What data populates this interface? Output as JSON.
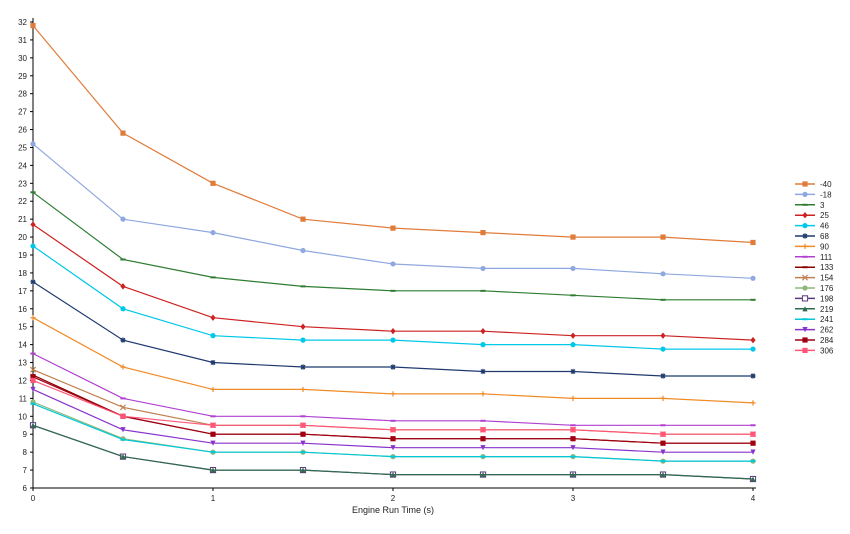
{
  "chart_data": {
    "type": "line",
    "title": "",
    "xlabel": "Engine Run Time (s)",
    "ylabel": "",
    "xlim": [
      0,
      4
    ],
    "ylim": [
      6,
      32
    ],
    "x_ticks": [
      0,
      1,
      2,
      3,
      4
    ],
    "y_ticks": [
      6,
      7,
      8,
      9,
      10,
      11,
      12,
      13,
      14,
      15,
      16,
      17,
      18,
      19,
      20,
      21,
      22,
      23,
      24,
      25,
      26,
      27,
      28,
      29,
      30,
      31,
      32
    ],
    "grid": false,
    "legend_position": "right",
    "x": [
      0,
      0.5,
      1,
      1.5,
      2,
      2.5,
      3,
      3.5,
      4
    ],
    "series": [
      {
        "name": "-40",
        "color": "#e07b39",
        "marker": "square",
        "values": [
          31.8,
          25.8,
          23.0,
          21.0,
          20.5,
          20.25,
          20.0,
          20.0,
          19.7
        ]
      },
      {
        "name": "-18",
        "color": "#8fa8e0",
        "marker": "circle",
        "values": [
          25.2,
          21.0,
          20.25,
          19.25,
          18.5,
          18.25,
          18.25,
          17.95,
          17.7
        ]
      },
      {
        "name": "3",
        "color": "#2e7d32",
        "marker": "dash",
        "values": [
          22.5,
          18.75,
          17.75,
          17.25,
          17.0,
          17.0,
          16.75,
          16.5,
          16.5
        ]
      },
      {
        "name": "25",
        "color": "#cc2222",
        "marker": "diamond",
        "values": [
          20.7,
          17.25,
          15.5,
          15.0,
          14.75,
          14.75,
          14.5,
          14.5,
          14.25
        ]
      },
      {
        "name": "46",
        "color": "#00c8e8",
        "marker": "circle",
        "values": [
          19.5,
          16.0,
          14.5,
          14.25,
          14.25,
          14.0,
          14.0,
          13.75,
          13.75
        ]
      },
      {
        "name": "68",
        "color": "#1f3a6e",
        "marker": "star",
        "values": [
          17.5,
          14.25,
          13.0,
          12.75,
          12.75,
          12.5,
          12.5,
          12.25,
          12.25
        ]
      },
      {
        "name": "90",
        "color": "#f08c28",
        "marker": "plus",
        "values": [
          15.5,
          12.75,
          11.5,
          11.5,
          11.25,
          11.25,
          11.0,
          11.0,
          10.75
        ]
      },
      {
        "name": "111",
        "color": "#b040d0",
        "marker": "dash",
        "values": [
          13.5,
          11.0,
          10.0,
          10.0,
          9.75,
          9.75,
          9.5,
          9.5,
          9.5
        ]
      },
      {
        "name": "133",
        "color": "#8b0000",
        "marker": "dash",
        "values": [
          12.3,
          10.0,
          9.0,
          9.0,
          8.75,
          8.75,
          8.75,
          8.5,
          8.5
        ]
      },
      {
        "name": "154",
        "color": "#c08050",
        "marker": "x",
        "values": [
          12.6,
          10.5,
          9.5,
          9.5,
          9.25,
          9.25,
          9.25,
          9.0,
          9.0
        ]
      },
      {
        "name": "176",
        "color": "#8db87a",
        "marker": "circle",
        "values": [
          10.8,
          8.75,
          8.0,
          8.0,
          7.75,
          7.75,
          7.75,
          7.5,
          7.5
        ]
      },
      {
        "name": "198",
        "color": "#5b3a7a",
        "marker": "open-square",
        "values": [
          9.5,
          7.75,
          7.0,
          7.0,
          6.75,
          6.75,
          6.75,
          6.75,
          6.5
        ]
      },
      {
        "name": "219",
        "color": "#2f6b4f",
        "marker": "triangle",
        "values": [
          9.5,
          7.75,
          7.0,
          7.0,
          6.75,
          6.75,
          6.75,
          6.75,
          6.5
        ]
      },
      {
        "name": "241",
        "color": "#00c8d8",
        "marker": "dash",
        "values": [
          10.7,
          8.7,
          8.0,
          8.0,
          7.75,
          7.75,
          7.75,
          7.5,
          7.5
        ]
      },
      {
        "name": "262",
        "color": "#8833cc",
        "marker": "triangle-down",
        "values": [
          11.5,
          9.25,
          8.5,
          8.5,
          8.25,
          8.25,
          8.25,
          8.0,
          8.0
        ]
      },
      {
        "name": "284",
        "color": "#a00010",
        "marker": "square",
        "values": [
          12.2,
          10.0,
          9.0,
          9.0,
          8.75,
          8.75,
          8.75,
          8.5,
          8.5
        ]
      },
      {
        "name": "306",
        "color": "#ff5577",
        "marker": "square",
        "values": [
          12.0,
          10.0,
          9.5,
          9.5,
          9.25,
          9.25,
          9.25,
          9.0,
          9.0
        ]
      }
    ]
  }
}
